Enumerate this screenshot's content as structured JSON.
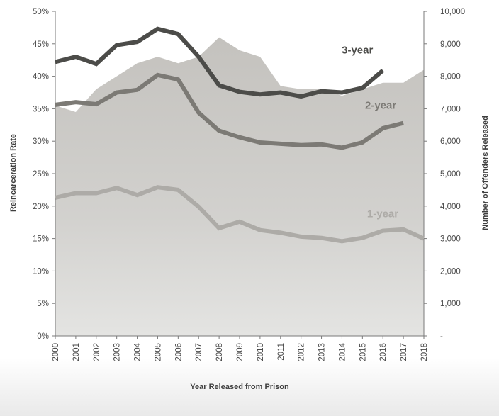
{
  "chart_data": {
    "type": "line",
    "title": "",
    "xlabel": "Year Released from Prison",
    "ylabel": "Reincarceration Rate",
    "y2label": "Number of Offenders Released",
    "x": [
      "2000",
      "2001",
      "2002",
      "2003",
      "2004",
      "2005",
      "2006",
      "2007",
      "2008",
      "2009",
      "2010",
      "2011",
      "2012",
      "2013",
      "2014",
      "2015",
      "2016",
      "2017",
      "2018"
    ],
    "ylim": [
      0,
      50
    ],
    "y2lim": [
      0,
      10000
    ],
    "y_ticks": [
      "0%",
      "5%",
      "10%",
      "15%",
      "20%",
      "25%",
      "30%",
      "35%",
      "40%",
      "45%",
      "50%"
    ],
    "y2_ticks": [
      "-",
      "1,000",
      "2,000",
      "3,000",
      "4,000",
      "5,000",
      "6,000",
      "7,000",
      "8,000",
      "9,000",
      "10,000"
    ],
    "grid": false,
    "legend": "none",
    "area": {
      "axis": "right",
      "values": [
        7100,
        6900,
        7600,
        8000,
        8400,
        8600,
        8400,
        8600,
        9200,
        8800,
        8600,
        7700,
        7600,
        7600,
        7400,
        7600,
        7800,
        7800,
        8200
      ],
      "color": "#c7c5c1"
    },
    "series": [
      {
        "name": "3-year",
        "color": "#4c4c49",
        "values": [
          42.2,
          43.0,
          41.9,
          44.8,
          45.3,
          47.3,
          46.5,
          43.0,
          38.6,
          37.6,
          37.2,
          37.5,
          36.9,
          37.7,
          37.5,
          38.2,
          40.9,
          null,
          null
        ]
      },
      {
        "name": "2-year",
        "color": "#7c7a75",
        "values": [
          35.6,
          36.0,
          35.7,
          37.5,
          37.9,
          40.2,
          39.5,
          34.4,
          31.6,
          30.6,
          29.8,
          29.6,
          29.4,
          29.5,
          29.0,
          29.8,
          32.0,
          32.8,
          null
        ]
      },
      {
        "name": "1-year",
        "color": "#adaba7",
        "values": [
          21.3,
          22.0,
          22.0,
          22.8,
          21.7,
          22.9,
          22.5,
          19.9,
          16.6,
          17.6,
          16.3,
          15.9,
          15.3,
          15.1,
          14.6,
          15.1,
          16.2,
          16.4,
          15.0
        ]
      }
    ]
  }
}
